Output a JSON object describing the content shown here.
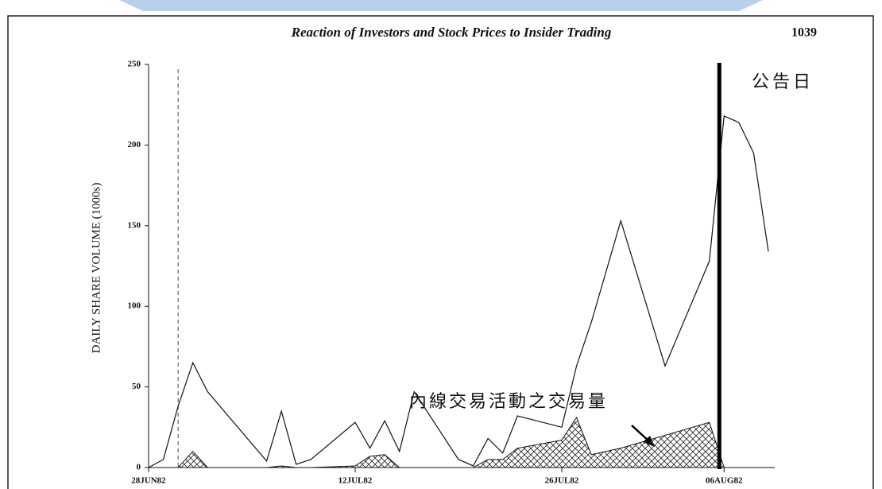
{
  "header": {
    "title": "Reaction of Investors and Stock Prices to Insider Trading",
    "page": "1039"
  },
  "chart_data": {
    "type": "line",
    "ylabel": "DAILY SHARE VOLUME (1000s)",
    "x": [
      "1982-06-28",
      "1982-06-29",
      "1982-06-30",
      "1982-07-01",
      "1982-07-02",
      "1982-07-06",
      "1982-07-07",
      "1982-07-08",
      "1982-07-09",
      "1982-07-12",
      "1982-07-13",
      "1982-07-14",
      "1982-07-15",
      "1982-07-16",
      "1982-07-19",
      "1982-07-20",
      "1982-07-21",
      "1982-07-22",
      "1982-07-23",
      "1982-07-26",
      "1982-07-27",
      "1982-07-28",
      "1982-07-30",
      "1982-08-02",
      "1982-08-05",
      "1982-08-06",
      "1982-08-07",
      "1982-08-08",
      "1982-08-09"
    ],
    "series": [
      {
        "name": "DAILY SHARE VOLUME",
        "color": "#111111",
        "style": "line",
        "values": [
          0,
          5,
          38,
          65,
          47,
          4,
          35,
          2,
          5,
          28,
          12,
          29,
          10,
          47,
          5,
          1,
          18,
          9,
          32,
          25,
          63,
          90,
          153,
          63,
          128,
          218,
          214,
          195,
          134
        ]
      },
      {
        "name": "內線交易活動之交易量",
        "color": "#111111",
        "style": "hatched-area",
        "values": [
          0,
          0,
          0,
          10,
          0,
          0,
          1,
          0,
          0,
          1,
          7,
          8,
          0,
          0,
          0,
          0,
          5,
          5,
          12,
          17,
          31,
          8,
          12,
          20,
          28,
          0,
          null,
          null,
          null
        ]
      }
    ],
    "xlim": [
      "1982-06-28",
      "1982-08-09"
    ],
    "xticks": [
      {
        "value": "1982-06-28",
        "label": "28JUN82"
      },
      {
        "value": "1982-07-12",
        "label": "12JUL82"
      },
      {
        "value": "1982-07-26",
        "label": "26JUL82"
      },
      {
        "value": "1982-08-06",
        "label": "06AUG82"
      }
    ],
    "ylim": [
      0,
      250
    ],
    "yticks": [
      0,
      50,
      100,
      150,
      200,
      250
    ],
    "grid": false,
    "reference_line": {
      "x": "1982-06-30",
      "style": "dashed"
    },
    "event_line": {
      "x": "1982-08-06",
      "label": "公告日"
    }
  }
}
